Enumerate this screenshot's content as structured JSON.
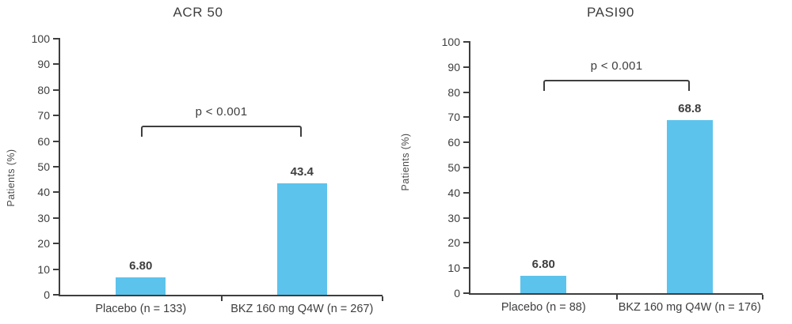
{
  "colors": {
    "bar_blue": "#5cc3ec",
    "axis_gray": "#3e3e3e"
  },
  "chart_data": [
    {
      "type": "bar",
      "title": "ACR 50",
      "ylabel": "Patients (%)",
      "ylim": [
        0,
        100
      ],
      "yticks": [
        0,
        10,
        20,
        30,
        40,
        50,
        60,
        70,
        80,
        90,
        100
      ],
      "categories": [
        "Placebo (n = 133)",
        "BKZ 160 mg Q4W (n = 267)"
      ],
      "values": [
        6.8,
        43.4
      ],
      "value_labels": [
        "6.80",
        "43.4"
      ],
      "bar_color": "#5cc3ec",
      "grid": false,
      "legend": "none",
      "significance": {
        "label": "p < 0.001",
        "level_pct": 66
      }
    },
    {
      "type": "bar",
      "title": "PASI90",
      "ylabel": "Patients (%)",
      "ylim": [
        0,
        100
      ],
      "yticks": [
        0,
        10,
        20,
        30,
        40,
        50,
        60,
        70,
        80,
        90,
        100
      ],
      "categories": [
        "Placebo (n = 88)",
        "BKZ 160 mg Q4W (n = 176)"
      ],
      "values": [
        6.8,
        68.8
      ],
      "value_labels": [
        "6.80",
        "68.8"
      ],
      "bar_color": "#5cc3ec",
      "grid": false,
      "legend": "none",
      "significance": {
        "label": "p < 0.001",
        "level_pct": 85
      }
    }
  ]
}
